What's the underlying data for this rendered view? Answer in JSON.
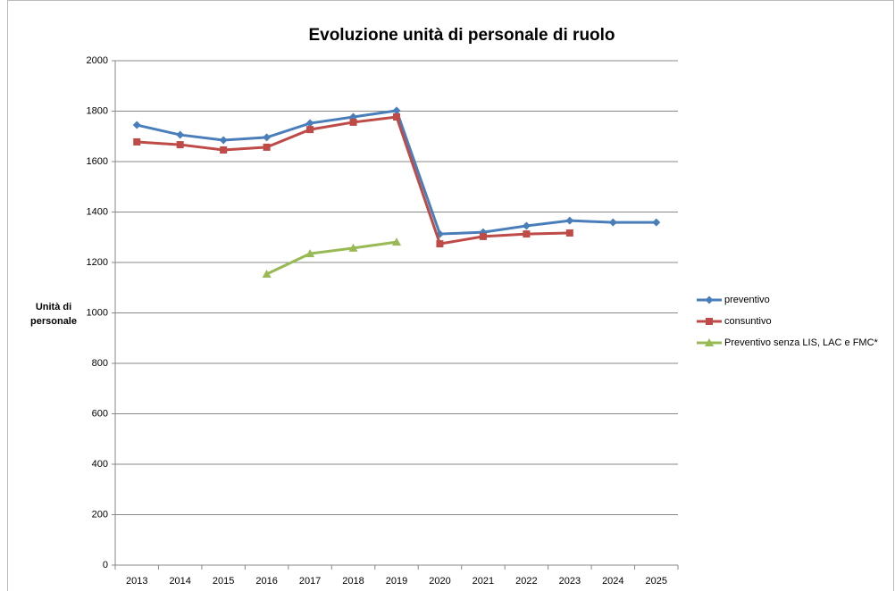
{
  "chart_data": {
    "type": "line",
    "title": "Evoluzione unità di personale di ruolo",
    "y_label": "Unità di personale",
    "categories": [
      "2013",
      "2014",
      "2015",
      "2016",
      "2017",
      "2018",
      "2019",
      "2020",
      "2021",
      "2022",
      "2023",
      "2024",
      "2025"
    ],
    "series": [
      {
        "name": "preventivo",
        "color": "#4a7ebb",
        "marker": "diamond",
        "values": [
          1745,
          1706,
          1685,
          1696,
          1752,
          1777,
          1802,
          1313,
          1320,
          1345,
          1366,
          1359,
          1359
        ]
      },
      {
        "name": "consuntivo",
        "color": "#be4b48",
        "marker": "square",
        "values": [
          1678,
          1667,
          1646,
          1657,
          1727,
          1756,
          1777,
          1274,
          1303,
          1313,
          1317,
          null,
          null
        ]
      },
      {
        "name": "Preventivo senza  LIS, LAC e FMC*",
        "color": "#98b954",
        "marker": "triangle",
        "values": [
          null,
          null,
          null,
          1154,
          1235,
          1257,
          1281,
          null,
          null,
          null,
          null,
          null,
          null
        ]
      }
    ],
    "ylim": [
      0,
      2000
    ],
    "yticks": [
      0,
      200,
      400,
      600,
      800,
      1000,
      1200,
      1400,
      1600,
      1800,
      2000
    ],
    "grid": true,
    "legend": "right"
  }
}
